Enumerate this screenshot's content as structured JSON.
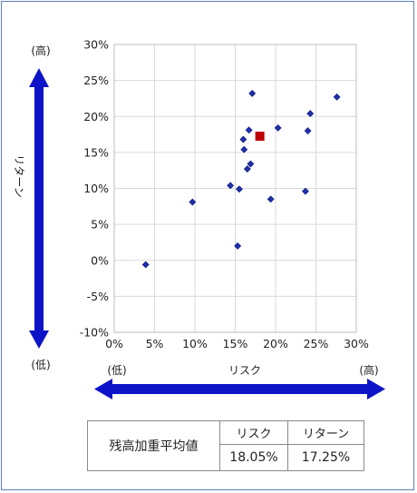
{
  "chart_data": {
    "type": "scatter",
    "xlabel": "リスク",
    "ylabel": "リターン",
    "x_low_label": "(低)",
    "x_high_label": "(高)",
    "y_low_label": "(低)",
    "y_high_label": "(高)",
    "xlim": [
      0,
      30
    ],
    "ylim": [
      -10,
      30
    ],
    "x_ticks": [
      "0%",
      "5%",
      "10%",
      "15%",
      "20%",
      "25%",
      "30%"
    ],
    "y_ticks": [
      "30%",
      "25%",
      "20%",
      "15%",
      "10%",
      "5%",
      "0%",
      "-5%",
      "-10%"
    ],
    "grid": true,
    "colors": {
      "points": "#1f2fa8",
      "highlight": "#c00000",
      "axis_arrow": "#0d14c8",
      "gridline": "#d9d9d9"
    },
    "series": [
      {
        "marker": "diamond",
        "x": [
          3.9,
          9.7,
          14.4,
          15.5,
          15.3,
          16.1,
          16.0,
          16.5,
          16.7,
          16.9,
          17.1,
          19.4,
          20.3,
          23.7,
          24.0,
          24.3,
          27.6
        ],
        "y": [
          -0.6,
          8.1,
          10.4,
          9.9,
          2.0,
          15.4,
          16.8,
          12.7,
          18.1,
          13.4,
          23.2,
          8.5,
          18.4,
          9.6,
          18.0,
          20.4,
          22.7
        ]
      },
      {
        "marker": "square",
        "x": [
          18.05
        ],
        "y": [
          17.25
        ]
      }
    ]
  },
  "summary_table": {
    "row_label": "残高加重平均値",
    "risk_header": "リスク",
    "return_header": "リターン",
    "risk_value": "18.05%",
    "return_value": "17.25%"
  }
}
